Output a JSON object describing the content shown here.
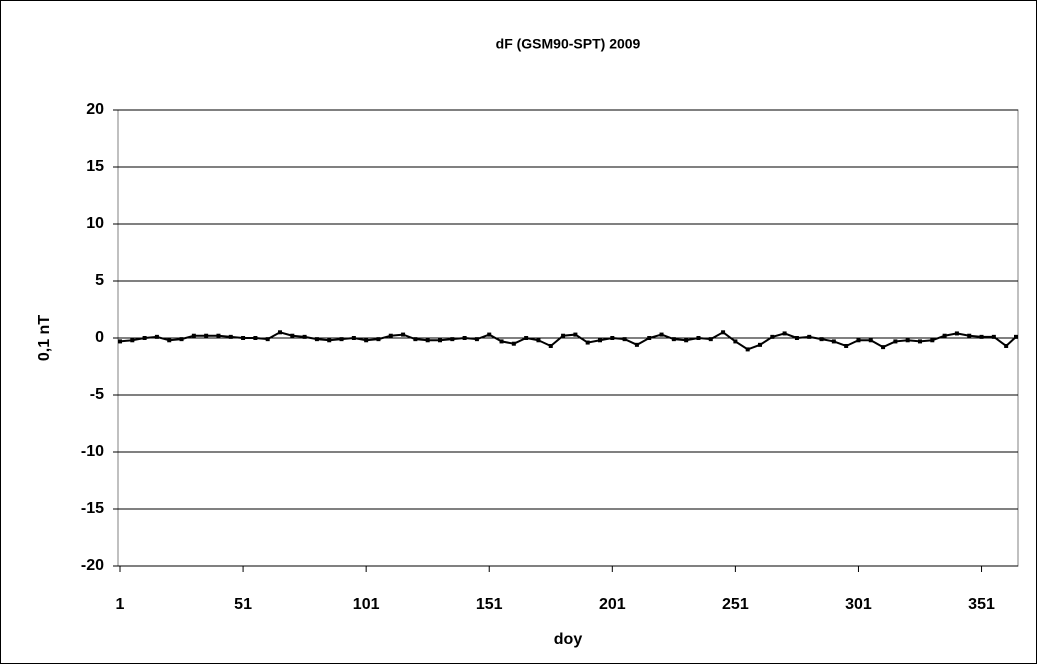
{
  "chart_data": {
    "type": "line",
    "title": "dF (GSM90-SPT) 2009",
    "x_label": "doy",
    "y_label": "0,1 nT",
    "x": [
      1,
      6,
      11,
      16,
      21,
      26,
      31,
      36,
      41,
      46,
      51,
      56,
      61,
      66,
      71,
      76,
      81,
      86,
      91,
      96,
      101,
      106,
      111,
      116,
      121,
      126,
      131,
      136,
      141,
      146,
      151,
      156,
      161,
      166,
      171,
      176,
      181,
      186,
      191,
      196,
      201,
      206,
      211,
      216,
      221,
      226,
      231,
      236,
      241,
      246,
      251,
      256,
      261,
      266,
      271,
      276,
      281,
      286,
      291,
      296,
      301,
      306,
      311,
      316,
      321,
      326,
      331,
      336,
      341,
      346,
      351,
      356,
      361,
      365
    ],
    "series": [
      {
        "name": "dF",
        "color": "#000000",
        "values": [
          -0.3,
          -0.2,
          0,
          0.1,
          -0.2,
          -0.1,
          0.2,
          0.2,
          0.2,
          0.1,
          0,
          0,
          -0.1,
          0.5,
          0.2,
          0.1,
          -0.1,
          -0.2,
          -0.1,
          0,
          -0.2,
          -0.1,
          0.2,
          0.3,
          -0.1,
          -0.2,
          -0.2,
          -0.1,
          0,
          -0.1,
          0.3,
          -0.3,
          -0.5,
          0,
          -0.2,
          -0.7,
          0.2,
          0.3,
          -0.4,
          -0.2,
          0,
          -0.1,
          -0.6,
          0,
          0.3,
          -0.1,
          -0.2,
          0,
          -0.1,
          0.5,
          -0.3,
          -1.0,
          -0.6,
          0.1,
          0.4,
          0,
          0.1,
          -0.1,
          -0.3,
          -0.7,
          -0.2,
          -0.2,
          -0.8,
          -0.3,
          -0.2,
          -0.3,
          -0.2,
          0.2,
          0.4,
          0.2,
          0.1,
          0.1,
          -0.7,
          0.1
        ]
      }
    ],
    "xlim": [
      1,
      365
    ],
    "xticks": [
      1,
      51,
      101,
      151,
      201,
      251,
      301,
      351
    ],
    "ylim": [
      -20,
      20
    ],
    "yticks": [
      -20,
      -15,
      -10,
      -5,
      0,
      5,
      10,
      15,
      20
    ],
    "grid": true
  }
}
